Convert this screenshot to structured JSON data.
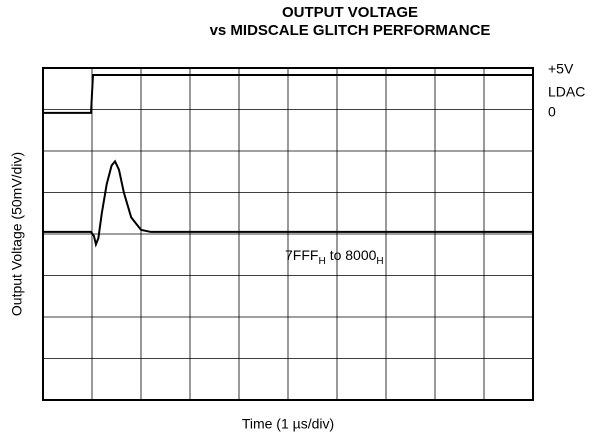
{
  "chart_data": {
    "type": "line",
    "title": [
      "OUTPUT VOLTAGE",
      "vs MIDSCALE GLITCH PERFORMANCE"
    ],
    "x_label": "Time (1 µs/div)",
    "y_label": "Output Voltage (50mV/div)",
    "xlim": [
      0,
      10
    ],
    "ylim": [
      0,
      8
    ],
    "xticks": [
      0,
      1,
      2,
      3,
      4,
      5,
      6,
      7,
      8,
      9,
      10
    ],
    "yticks": [
      0,
      1,
      2,
      3,
      4,
      5,
      6,
      7,
      8
    ],
    "grid": true,
    "trace_labels": [
      "+5V",
      "LDAC",
      "0"
    ],
    "annotation": [
      "7FFF",
      "H",
      "to 8000",
      "H"
    ],
    "series": [
      {
        "color": "#000000",
        "x": [
          0,
          0.98,
          1.02,
          10
        ],
        "values": [
          6.92,
          6.92,
          7.83,
          7.83
        ]
      },
      {
        "color": "#000000",
        "x": [
          0,
          0.98,
          1.04,
          1.08,
          1.13,
          1.2,
          1.3,
          1.4,
          1.47,
          1.55,
          1.65,
          1.8,
          2.0,
          2.2,
          10
        ],
        "values": [
          4.05,
          4.05,
          3.95,
          3.75,
          3.9,
          4.5,
          5.2,
          5.65,
          5.75,
          5.55,
          5.0,
          4.4,
          4.1,
          4.05,
          4.05
        ]
      }
    ]
  }
}
